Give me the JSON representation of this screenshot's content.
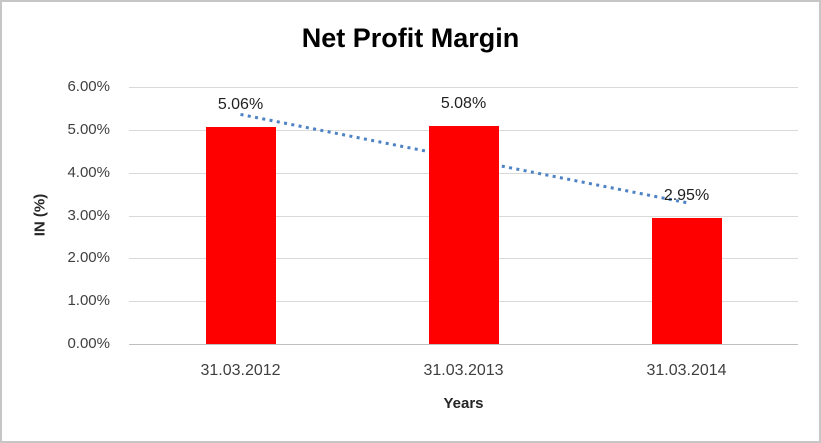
{
  "window": {
    "background_color": "#ffffff",
    "border_color": "#c6c6c6"
  },
  "chart_data": {
    "type": "bar",
    "title": "Net Profit Margin",
    "categories": [
      "31.03.2012",
      "31.03.2013",
      "31.03.2014"
    ],
    "values": [
      5.06,
      5.08,
      2.95
    ],
    "value_labels": [
      "5.06%",
      "5.08%",
      "2.95%"
    ],
    "xlabel": "Years",
    "ylabel": "IN (%)",
    "ylim": [
      0,
      6
    ],
    "ytick_step": 1,
    "ytick_labels": [
      "0.00%",
      "1.00%",
      "2.00%",
      "3.00%",
      "4.00%",
      "5.00%",
      "6.00%"
    ],
    "grid": true,
    "legend": "none",
    "bar_color": "#ff0000",
    "gridline_color": "#d9d9d9",
    "text_color": "#3f3f3f",
    "trendline": {
      "style": "dotted",
      "color": "#4d82c4",
      "start_value": 5.36,
      "end_value": 3.3
    }
  }
}
